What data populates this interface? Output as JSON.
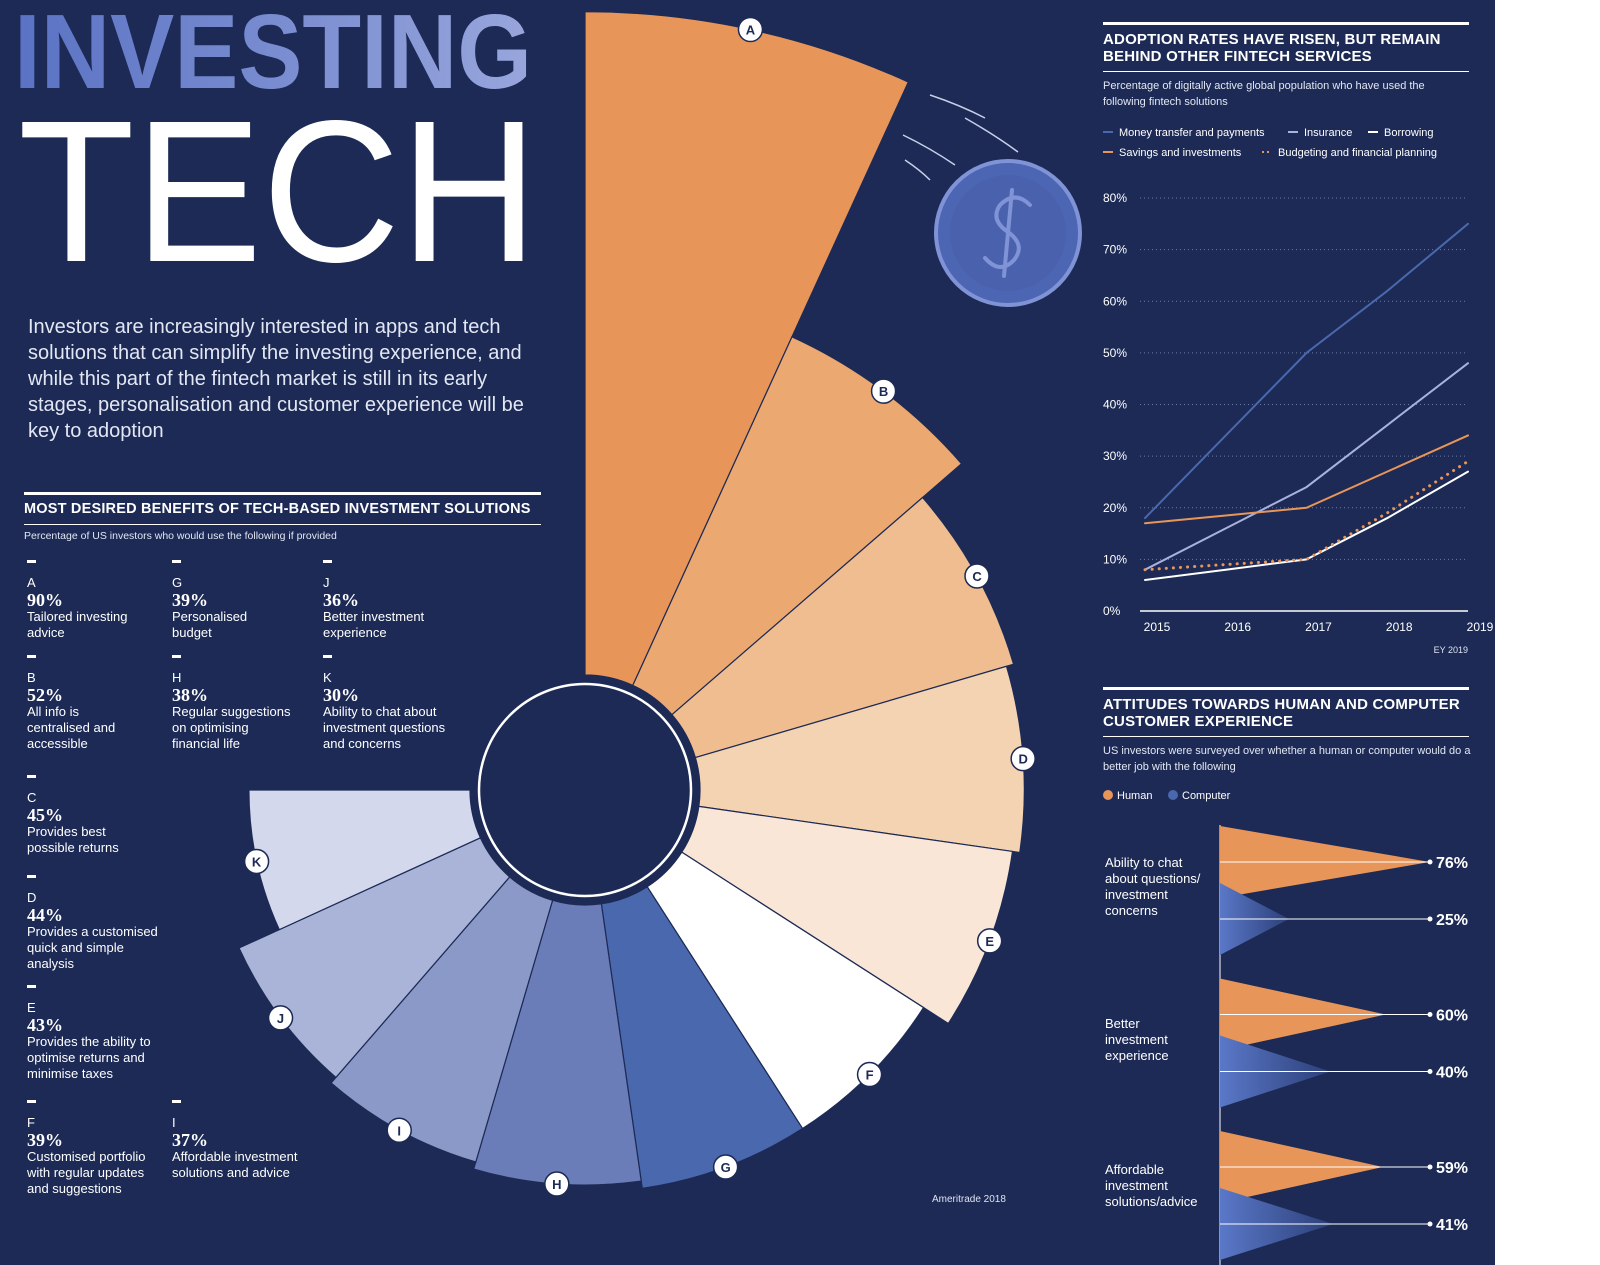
{
  "header": {
    "title_line1": "INVESTING",
    "title_line2": "TECH",
    "intro": "Investors are increasingly interested in apps and tech solutions that can simplify the investing experience, and while this part of the fintech market is still in its early stages, personalisation and customer experience will be key to adoption"
  },
  "chart_data": [
    {
      "type": "radial-bar",
      "title": "MOST DESIRED BENEFITS OF TECH-BASED INVESTMENT SOLUTIONS",
      "subtitle": "Percentage of US investors who would use the following if provided",
      "categories": [
        "A",
        "B",
        "C",
        "D",
        "E",
        "F",
        "G",
        "H",
        "I",
        "J",
        "K"
      ],
      "values": [
        90,
        52,
        45,
        44,
        43,
        39,
        39,
        38,
        37,
        36,
        30
      ],
      "value_labels": [
        "90%",
        "52%",
        "45%",
        "44%",
        "43%",
        "39%",
        "39%",
        "38%",
        "37%",
        "36%",
        "30%"
      ],
      "descriptions": [
        "Tailored investing advice",
        "All info is centralised and accessible",
        "Provides best possible returns",
        "Provides a customised quick and simple analysis",
        "Provides the ability to optimise returns and minimise taxes",
        "Customised portfolio with regular updates and suggestions",
        "Personalised budget",
        "Regular suggestions on optimising financial life",
        "Affordable investment solutions and advice",
        "Better investment experience",
        "Ability to chat about investment questions and concerns"
      ],
      "colors": [
        "#e8955a",
        "#eba871",
        "#efbd90",
        "#f4d3b2",
        "#f9e6d6",
        "#ffffff",
        "#4a68ad",
        "#6b7db8",
        "#8b99c8",
        "#aab4d8",
        "#d3d8ec"
      ],
      "source": "Ameritrade 2018"
    },
    {
      "type": "line",
      "title": "ADOPTION RATES HAVE RISEN, BUT REMAIN BEHIND OTHER FINTECH SERVICES",
      "subtitle": "Percentage of digitally active global population who have used the following fintech solutions",
      "x": [
        2015,
        2016,
        2017,
        2018,
        2019
      ],
      "xlim": [
        2015,
        2019
      ],
      "xticks": [
        2015,
        2016,
        2017,
        2018,
        2019
      ],
      "ylim": [
        0,
        80
      ],
      "yticks": [
        {
          "value": 0,
          "label": "0%"
        },
        {
          "value": 10,
          "label": "10%"
        },
        {
          "value": 20,
          "label": "20%"
        },
        {
          "value": 30,
          "label": "30%"
        },
        {
          "value": 40,
          "label": "40%"
        },
        {
          "value": 50,
          "label": "50%"
        },
        {
          "value": 60,
          "label": "60%"
        },
        {
          "value": 70,
          "label": "70%"
        },
        {
          "value": 80,
          "label": "80%"
        }
      ],
      "grid": true,
      "series": [
        {
          "name": "Money transfer and payments",
          "color": "#4a68ad",
          "values": [
            18,
            34,
            50,
            62,
            75
          ]
        },
        {
          "name": "Insurance",
          "color": "#a8b2dc",
          "values": [
            8,
            16,
            24,
            36,
            48
          ]
        },
        {
          "name": "Borrowing",
          "color": "#ffffff",
          "values": [
            6,
            8,
            10,
            18,
            27
          ]
        },
        {
          "name": "Savings and investments",
          "color": "#e8955a",
          "values": [
            17,
            18.5,
            20,
            27,
            34
          ]
        },
        {
          "name": "Budgeting and financial planning",
          "color": "#e8955a",
          "style": "dotted",
          "values": [
            8,
            9,
            10,
            19,
            29
          ]
        }
      ],
      "source": "EY 2019"
    },
    {
      "type": "triangle-bar",
      "title": "ATTITUDES TOWARDS HUMAN AND COMPUTER CUSTOMER EXPERIENCE",
      "subtitle": "US investors were surveyed over whether a human or computer would do a better job with the following",
      "categories": [
        "Ability to chat about questions/ investment concerns",
        "Better investment experience",
        "Affordable investment solutions/advice"
      ],
      "series": [
        {
          "name": "Human",
          "color": "#e8955a",
          "values": [
            76,
            60,
            59
          ],
          "value_labels": [
            "76%",
            "60%",
            "59%"
          ]
        },
        {
          "name": "Computer",
          "color": "#4a68ad",
          "values": [
            25,
            40,
            41
          ],
          "value_labels": [
            "25%",
            "40%",
            "41%"
          ]
        }
      ]
    }
  ]
}
